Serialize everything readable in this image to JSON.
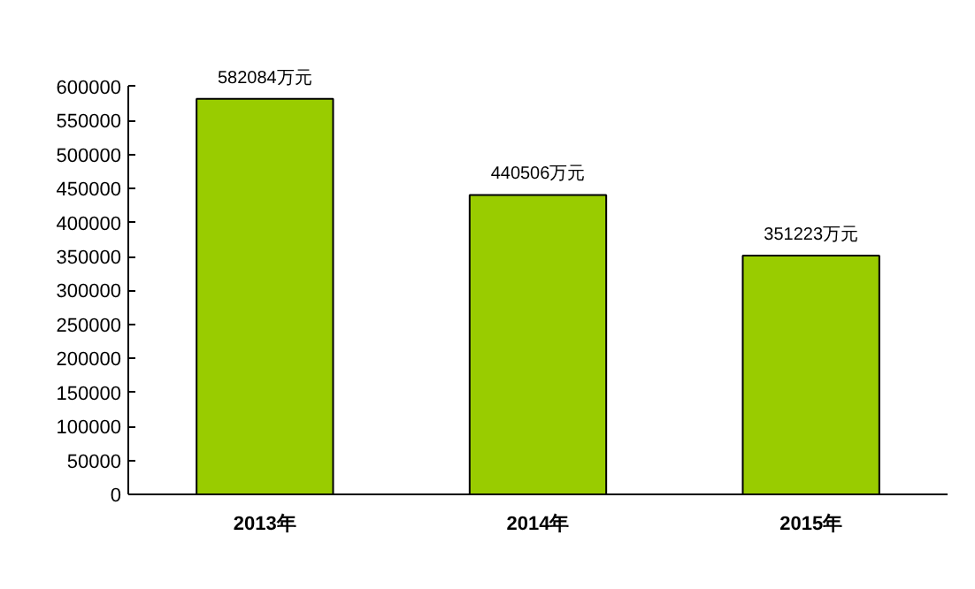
{
  "chart_data": {
    "type": "bar",
    "categories": [
      "2013年",
      "2014年",
      "2015年"
    ],
    "values": [
      582084,
      440506,
      351223
    ],
    "color": "#99cc00",
    "value_labels": [
      "582084万元",
      "440506万元",
      "351223万元"
    ],
    "ylim": [
      0,
      600000
    ],
    "yticks": [
      0,
      50000,
      100000,
      150000,
      200000,
      250000,
      300000,
      350000,
      400000,
      450000,
      500000,
      550000,
      600000
    ],
    "grid": false
  }
}
